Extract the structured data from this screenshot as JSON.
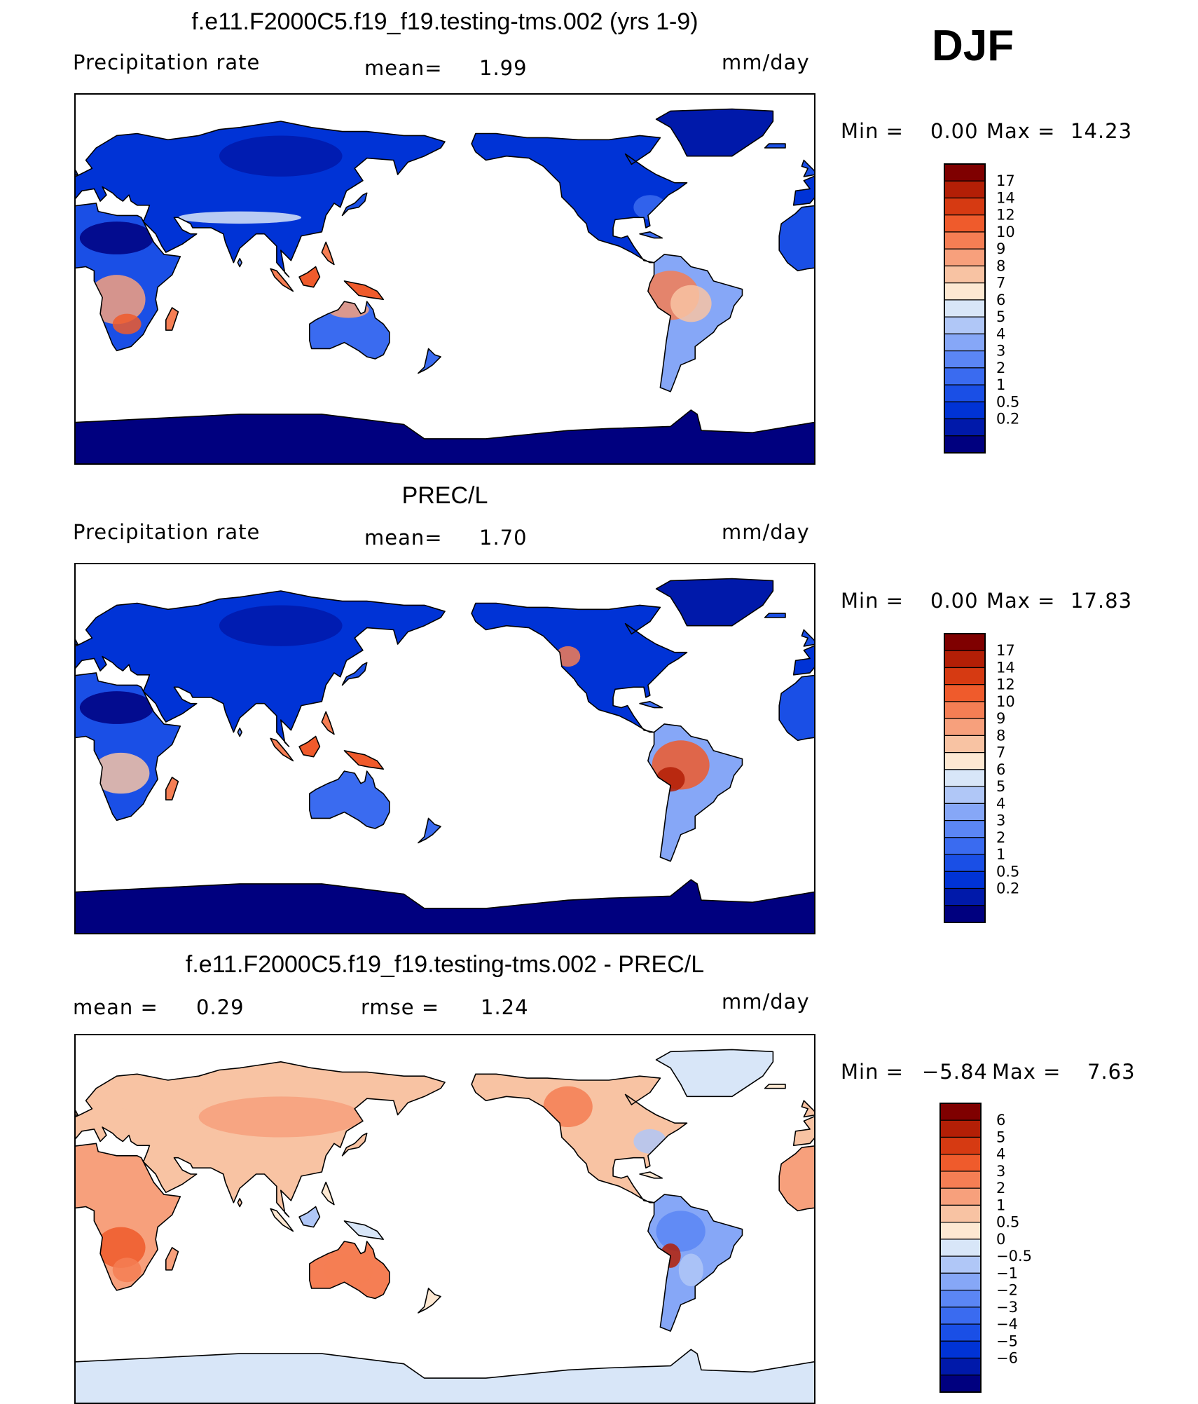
{
  "figure": {
    "season": "DJF",
    "palettes": {
      "abs": [
        "#00007f",
        "#0019aa",
        "#0033d6",
        "#1a4fe6",
        "#3a6bf0",
        "#5b86f5",
        "#86a7f7",
        "#b0c7f7",
        "#d8e6f8",
        "#fde8d2",
        "#f8c3a3",
        "#f7a07c",
        "#f57e54",
        "#ef5b2c",
        "#d63a12",
        "#b31f06",
        "#7f0000"
      ],
      "diff": [
        "#00007f",
        "#0019aa",
        "#0033d6",
        "#1a4fe6",
        "#3a6bf0",
        "#5b86f5",
        "#86a7f7",
        "#b0c7f7",
        "#d8e6f8",
        "#fde8d2",
        "#f8c3a3",
        "#f7a07c",
        "#f57e54",
        "#ef5b2c",
        "#d63a12",
        "#b31f06",
        "#7f0000"
      ]
    }
  },
  "chart_data": [
    {
      "type": "heatmap",
      "title": "f.e11.F2000C5.f19_f19.testing-tms.002 (yrs 1-9)",
      "left_label": "Precipitation rate",
      "mean_label": "mean=",
      "mean_value": "1.99",
      "units": "mm/day",
      "min_label": "Min =",
      "min_value": "0.00",
      "max_label": "Max =",
      "max_value": "14.23",
      "levels": [
        "17",
        "14",
        "12",
        "10",
        "9",
        "8",
        "7",
        "6",
        "5",
        "4",
        "3",
        "2",
        "1",
        "0.5",
        "0.2"
      ],
      "palette": "abs",
      "map_type": "model"
    },
    {
      "type": "heatmap",
      "title": "PREC/L",
      "left_label": "Precipitation rate",
      "mean_label": "mean=",
      "mean_value": "1.70",
      "units": "mm/day",
      "min_label": "Min =",
      "min_value": "0.00",
      "max_label": "Max =",
      "max_value": "17.83",
      "levels": [
        "17",
        "14",
        "12",
        "10",
        "9",
        "8",
        "7",
        "6",
        "5",
        "4",
        "3",
        "2",
        "1",
        "0.5",
        "0.2"
      ],
      "palette": "abs",
      "map_type": "obs"
    },
    {
      "type": "heatmap",
      "title": "f.e11.F2000C5.f19_f19.testing-tms.002 - PREC/L",
      "left_label": "mean =",
      "mean_label": "",
      "mean_value": "0.29",
      "rmse_label": "rmse =",
      "rmse_value": "1.24",
      "units": "mm/day",
      "min_label": "Min =",
      "min_value": "−5.84",
      "max_label": "Max =",
      "max_value": "7.63",
      "levels": [
        "6",
        "5",
        "4",
        "3",
        "2",
        "1",
        "0.5",
        "0",
        "−0.5",
        "−1",
        "−2",
        "−3",
        "−4",
        "−5",
        "−6"
      ],
      "palette": "diff",
      "map_type": "diff"
    }
  ]
}
